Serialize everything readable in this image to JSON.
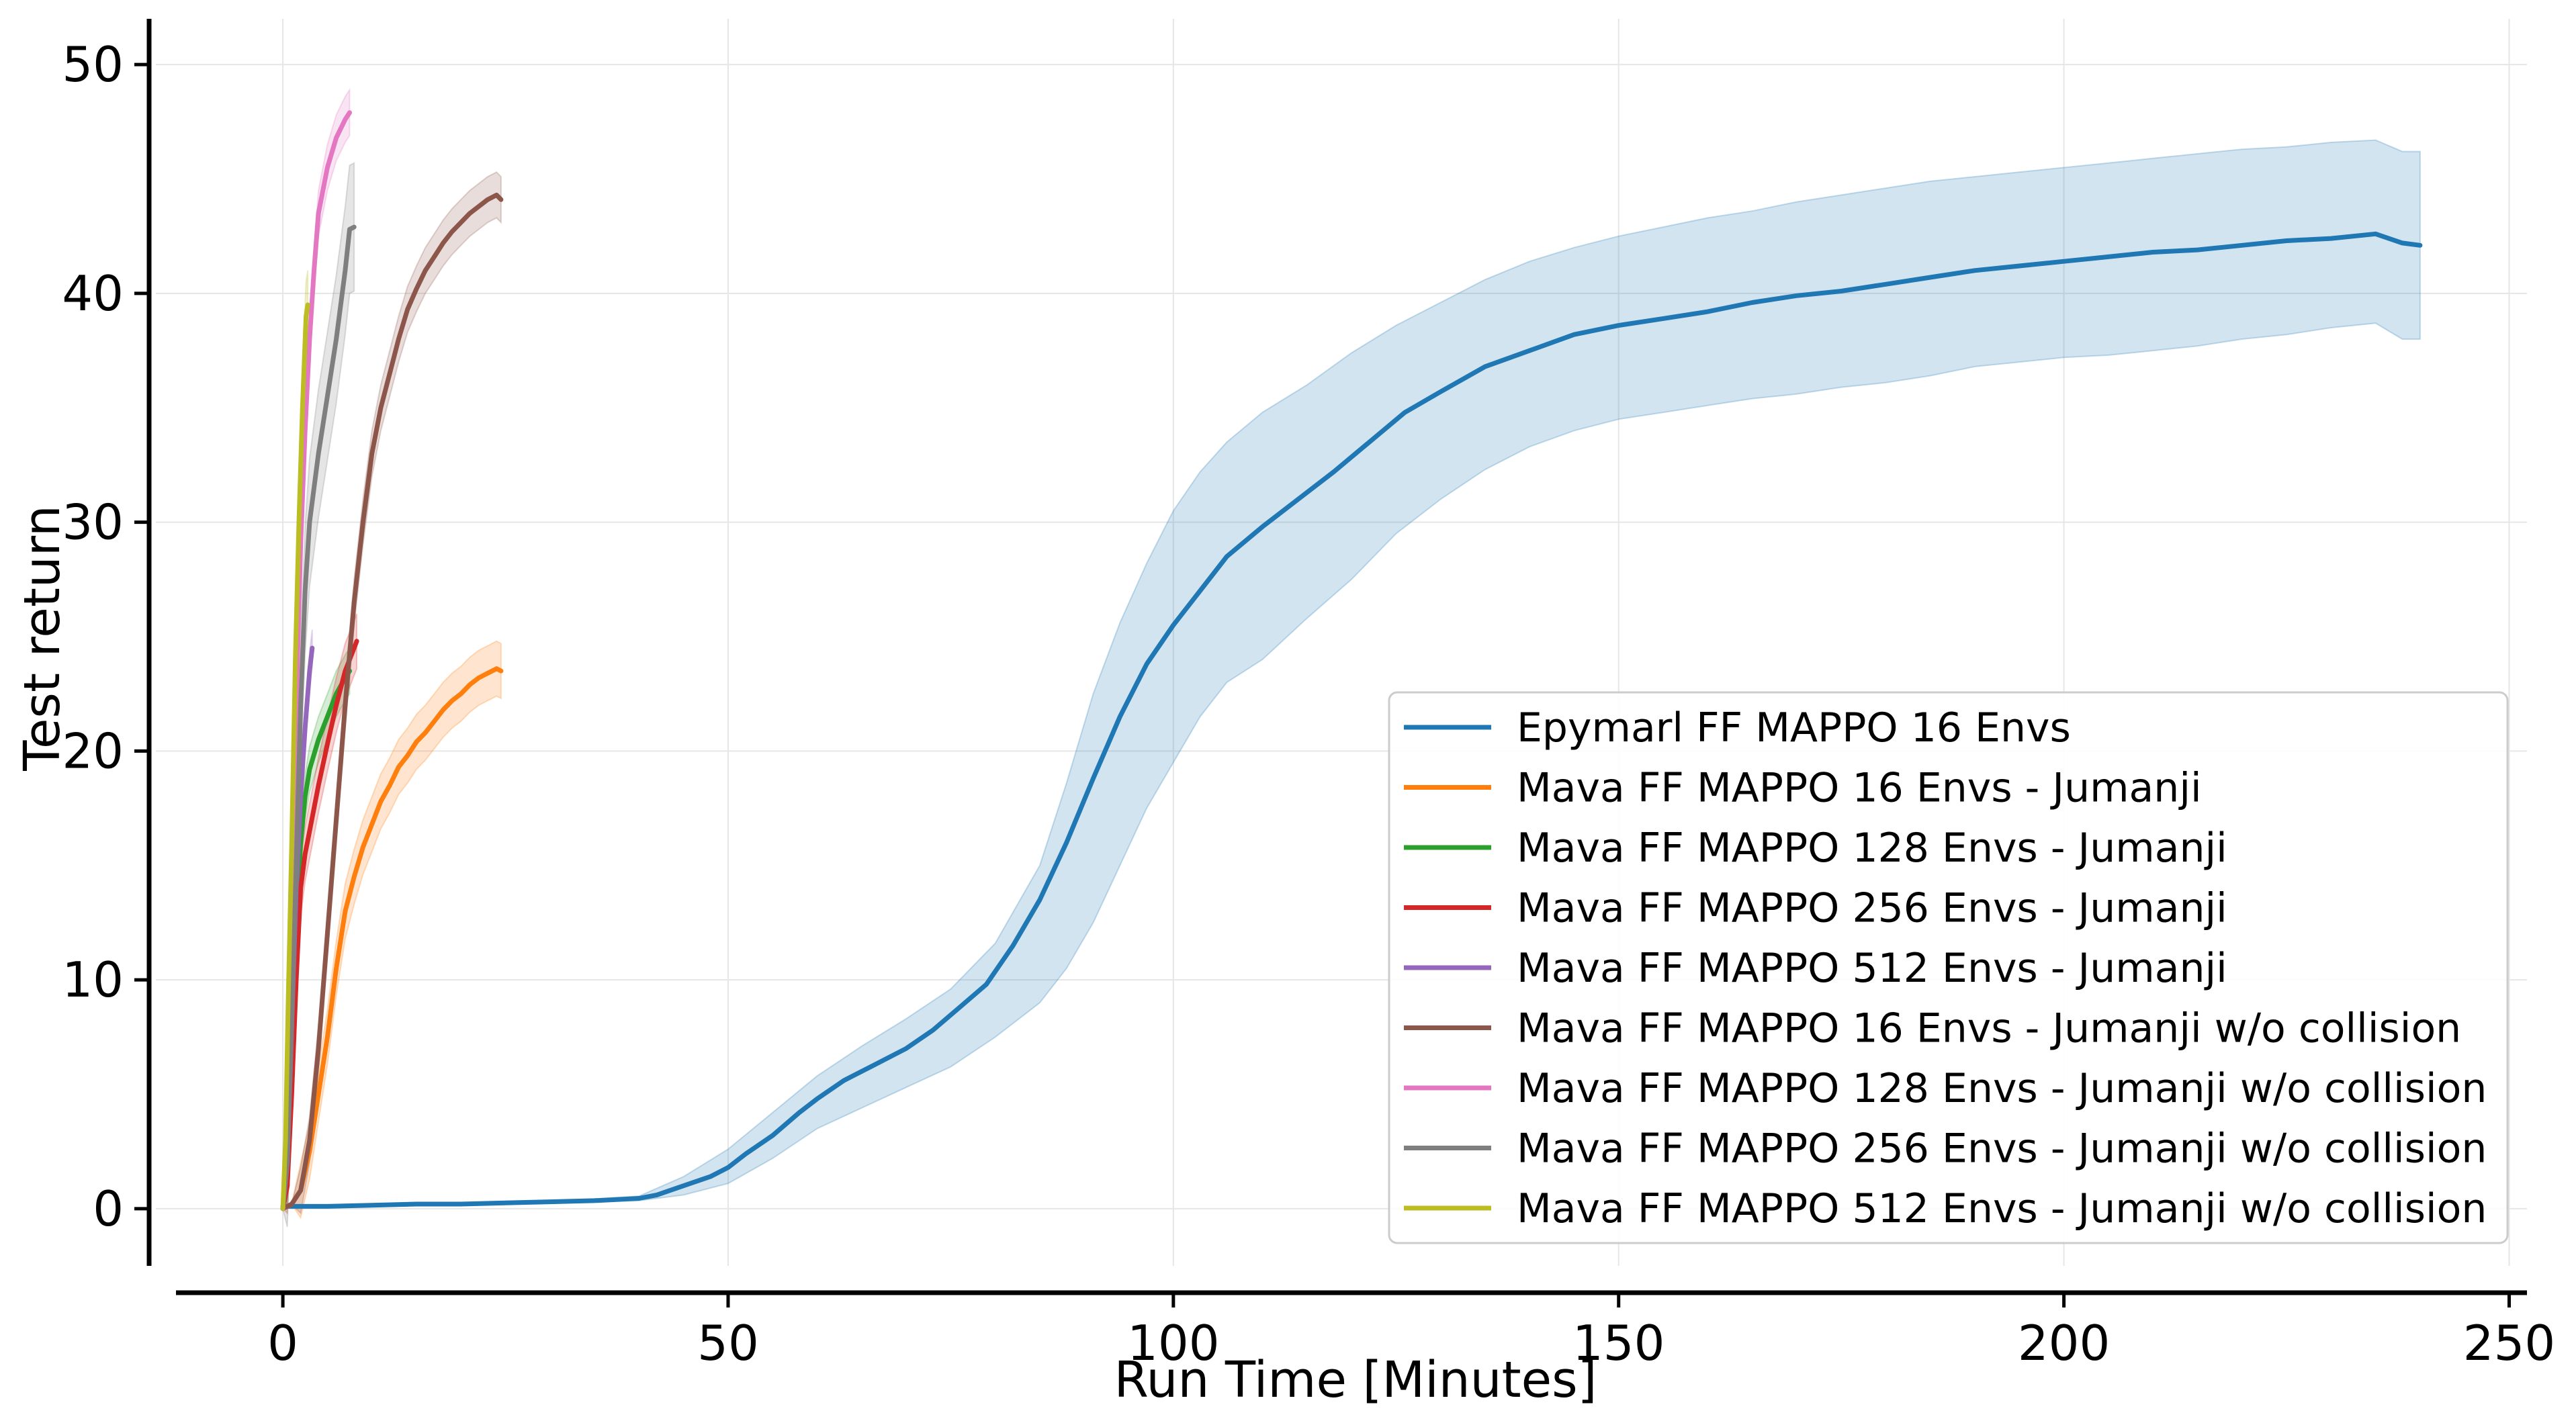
{
  "chart_data": {
    "type": "line",
    "xlabel": "Run Time [Minutes]",
    "ylabel": "Test return",
    "xlim": [
      -12,
      252
    ],
    "ylim": [
      -2.5,
      52
    ],
    "xticks": [
      0,
      50,
      100,
      150,
      200,
      250
    ],
    "yticks": [
      0,
      10,
      20,
      30,
      40,
      50
    ],
    "grid": true,
    "legend_position": "lower-right",
    "series": [
      {
        "name": "Epymarl FF MAPPO 16 Envs",
        "color": "#1f77b4",
        "points": [
          [
            0,
            0.1
          ],
          [
            5,
            0.1
          ],
          [
            10,
            0.15
          ],
          [
            15,
            0.2
          ],
          [
            20,
            0.2
          ],
          [
            25,
            0.25
          ],
          [
            30,
            0.3
          ],
          [
            35,
            0.35
          ],
          [
            40,
            0.45
          ],
          [
            42,
            0.6
          ],
          [
            45,
            1.0
          ],
          [
            48,
            1.4
          ],
          [
            50,
            1.8
          ],
          [
            52,
            2.4
          ],
          [
            55,
            3.2
          ],
          [
            58,
            4.2
          ],
          [
            60,
            4.8
          ],
          [
            63,
            5.6
          ],
          [
            66,
            6.2
          ],
          [
            70,
            7.0
          ],
          [
            73,
            7.8
          ],
          [
            76,
            8.8
          ],
          [
            79,
            9.8
          ],
          [
            82,
            11.5
          ],
          [
            85,
            13.5
          ],
          [
            88,
            16
          ],
          [
            91,
            18.8
          ],
          [
            94,
            21.5
          ],
          [
            97,
            23.8
          ],
          [
            100,
            25.5
          ],
          [
            103,
            27
          ],
          [
            106,
            28.5
          ],
          [
            110,
            29.8
          ],
          [
            114,
            31
          ],
          [
            118,
            32.2
          ],
          [
            122,
            33.5
          ],
          [
            126,
            34.8
          ],
          [
            130,
            35.7
          ],
          [
            135,
            36.8
          ],
          [
            140,
            37.5
          ],
          [
            145,
            38.2
          ],
          [
            150,
            38.6
          ],
          [
            155,
            38.9
          ],
          [
            160,
            39.2
          ],
          [
            165,
            39.6
          ],
          [
            170,
            39.9
          ],
          [
            175,
            40.1
          ],
          [
            180,
            40.4
          ],
          [
            185,
            40.7
          ],
          [
            190,
            41.0
          ],
          [
            195,
            41.2
          ],
          [
            200,
            41.4
          ],
          [
            205,
            41.6
          ],
          [
            210,
            41.8
          ],
          [
            215,
            41.9
          ],
          [
            220,
            42.1
          ],
          [
            225,
            42.3
          ],
          [
            230,
            42.4
          ],
          [
            235,
            42.6
          ],
          [
            238,
            42.2
          ],
          [
            240,
            42.1
          ]
        ],
        "band_lower": [
          [
            0,
            0.1
          ],
          [
            10,
            0.15
          ],
          [
            20,
            0.2
          ],
          [
            30,
            0.25
          ],
          [
            40,
            0.35
          ],
          [
            45,
            0.6
          ],
          [
            50,
            1.1
          ],
          [
            55,
            2.2
          ],
          [
            60,
            3.5
          ],
          [
            65,
            4.4
          ],
          [
            70,
            5.3
          ],
          [
            75,
            6.2
          ],
          [
            80,
            7.5
          ],
          [
            85,
            9.0
          ],
          [
            88,
            10.5
          ],
          [
            91,
            12.5
          ],
          [
            94,
            15.0
          ],
          [
            97,
            17.5
          ],
          [
            100,
            19.5
          ],
          [
            103,
            21.5
          ],
          [
            106,
            23.0
          ],
          [
            110,
            24.0
          ],
          [
            115,
            25.8
          ],
          [
            120,
            27.5
          ],
          [
            125,
            29.5
          ],
          [
            130,
            31.0
          ],
          [
            135,
            32.3
          ],
          [
            140,
            33.3
          ],
          [
            145,
            34.0
          ],
          [
            150,
            34.5
          ],
          [
            155,
            34.8
          ],
          [
            160,
            35.1
          ],
          [
            165,
            35.4
          ],
          [
            170,
            35.6
          ],
          [
            175,
            35.9
          ],
          [
            180,
            36.1
          ],
          [
            185,
            36.4
          ],
          [
            190,
            36.8
          ],
          [
            195,
            37.0
          ],
          [
            200,
            37.2
          ],
          [
            205,
            37.3
          ],
          [
            210,
            37.5
          ],
          [
            215,
            37.7
          ],
          [
            220,
            38.0
          ],
          [
            225,
            38.2
          ],
          [
            230,
            38.5
          ],
          [
            235,
            38.7
          ],
          [
            238,
            38.0
          ],
          [
            240,
            38.0
          ]
        ],
        "band_upper": [
          [
            0,
            0.1
          ],
          [
            10,
            0.15
          ],
          [
            20,
            0.2
          ],
          [
            30,
            0.3
          ],
          [
            40,
            0.55
          ],
          [
            45,
            1.4
          ],
          [
            50,
            2.6
          ],
          [
            55,
            4.2
          ],
          [
            60,
            5.8
          ],
          [
            65,
            7.1
          ],
          [
            70,
            8.3
          ],
          [
            75,
            9.6
          ],
          [
            80,
            11.6
          ],
          [
            85,
            15.0
          ],
          [
            88,
            18.6
          ],
          [
            91,
            22.5
          ],
          [
            94,
            25.6
          ],
          [
            97,
            28.2
          ],
          [
            100,
            30.5
          ],
          [
            103,
            32.2
          ],
          [
            106,
            33.5
          ],
          [
            110,
            34.8
          ],
          [
            115,
            36.0
          ],
          [
            120,
            37.4
          ],
          [
            125,
            38.6
          ],
          [
            130,
            39.6
          ],
          [
            135,
            40.6
          ],
          [
            140,
            41.4
          ],
          [
            145,
            42.0
          ],
          [
            150,
            42.5
          ],
          [
            155,
            42.9
          ],
          [
            160,
            43.3
          ],
          [
            165,
            43.6
          ],
          [
            170,
            44.0
          ],
          [
            175,
            44.3
          ],
          [
            180,
            44.6
          ],
          [
            185,
            44.9
          ],
          [
            190,
            45.1
          ],
          [
            195,
            45.3
          ],
          [
            200,
            45.5
          ],
          [
            205,
            45.7
          ],
          [
            210,
            45.9
          ],
          [
            215,
            46.1
          ],
          [
            220,
            46.3
          ],
          [
            225,
            46.4
          ],
          [
            230,
            46.6
          ],
          [
            235,
            46.7
          ],
          [
            238,
            46.2
          ],
          [
            240,
            46.2
          ]
        ]
      },
      {
        "name": "Mava FF MAPPO 16 Envs - Jumanji",
        "color": "#ff7f0e",
        "points": [
          [
            0,
            0
          ],
          [
            1,
            0.2
          ],
          [
            2,
            0.8
          ],
          [
            3,
            2.5
          ],
          [
            4,
            5
          ],
          [
            5,
            7.5
          ],
          [
            6,
            10.5
          ],
          [
            7,
            13
          ],
          [
            8,
            14.5
          ],
          [
            9,
            15.8
          ],
          [
            10,
            16.8
          ],
          [
            11,
            17.8
          ],
          [
            12,
            18.5
          ],
          [
            13,
            19.3
          ],
          [
            14,
            19.8
          ],
          [
            15,
            20.4
          ],
          [
            16,
            20.8
          ],
          [
            17,
            21.3
          ],
          [
            18,
            21.8
          ],
          [
            19,
            22.2
          ],
          [
            20,
            22.5
          ],
          [
            21,
            22.9
          ],
          [
            22,
            23.2
          ],
          [
            23,
            23.4
          ],
          [
            24,
            23.6
          ],
          [
            24.5,
            23.5
          ]
        ],
        "band_halfwidth": 1.2
      },
      {
        "name": "Mava FF MAPPO 128 Envs - Jumanji",
        "color": "#2ca02c",
        "points": [
          [
            0,
            0
          ],
          [
            0.5,
            1
          ],
          [
            1,
            6
          ],
          [
            1.5,
            12
          ],
          [
            2,
            16
          ],
          [
            2.5,
            18
          ],
          [
            3,
            19.2
          ],
          [
            4,
            20.5
          ],
          [
            5,
            21.5
          ],
          [
            6,
            22.5
          ],
          [
            7,
            23.2
          ],
          [
            7.5,
            23.5
          ]
        ],
        "band_halfwidth": 1.0
      },
      {
        "name": "Mava FF MAPPO 256 Envs - Jumanji",
        "color": "#d62728",
        "points": [
          [
            0,
            0
          ],
          [
            0.5,
            1
          ],
          [
            1,
            5
          ],
          [
            1.5,
            10
          ],
          [
            2,
            14
          ],
          [
            2.5,
            15.5
          ],
          [
            3,
            16.5
          ],
          [
            4,
            18.5
          ],
          [
            5,
            20.3
          ],
          [
            6,
            22
          ],
          [
            7,
            23.5
          ],
          [
            8,
            24.5
          ],
          [
            8.3,
            24.8
          ]
        ],
        "band_halfwidth": 1.2
      },
      {
        "name": "Mava FF MAPPO 512 Envs - Jumanji",
        "color": "#9467bd",
        "points": [
          [
            0,
            0
          ],
          [
            0.5,
            2
          ],
          [
            1,
            8
          ],
          [
            1.5,
            14
          ],
          [
            2,
            18
          ],
          [
            2.5,
            21
          ],
          [
            3,
            23.5
          ],
          [
            3.3,
            24.5
          ]
        ],
        "band_halfwidth": 0.8
      },
      {
        "name": "Mava FF MAPPO 16 Envs - Jumanji w/o collision",
        "color": "#8c564b",
        "points": [
          [
            0,
            0
          ],
          [
            1,
            0.2
          ],
          [
            2,
            0.8
          ],
          [
            3,
            3
          ],
          [
            4,
            7
          ],
          [
            5,
            12
          ],
          [
            6,
            17
          ],
          [
            7,
            22
          ],
          [
            8,
            26.5
          ],
          [
            9,
            30
          ],
          [
            10,
            33
          ],
          [
            11,
            35
          ],
          [
            12,
            36.5
          ],
          [
            13,
            38
          ],
          [
            14,
            39.3
          ],
          [
            15,
            40.2
          ],
          [
            16,
            41
          ],
          [
            17,
            41.6
          ],
          [
            18,
            42.2
          ],
          [
            19,
            42.7
          ],
          [
            20,
            43.1
          ],
          [
            21,
            43.5
          ],
          [
            22,
            43.8
          ],
          [
            23,
            44.1
          ],
          [
            24,
            44.3
          ],
          [
            24.5,
            44.1
          ]
        ],
        "band_halfwidth": 1.0
      },
      {
        "name": "Mava FF MAPPO 128 Envs - Jumanji w/o collision",
        "color": "#e377c2",
        "points": [
          [
            0,
            0
          ],
          [
            0.5,
            3
          ],
          [
            1,
            12
          ],
          [
            1.5,
            22
          ],
          [
            2,
            29
          ],
          [
            2.5,
            34
          ],
          [
            3,
            38
          ],
          [
            3.5,
            41
          ],
          [
            4,
            43.5
          ],
          [
            5,
            45.5
          ],
          [
            6,
            46.8
          ],
          [
            7,
            47.6
          ],
          [
            7.5,
            47.9
          ]
        ],
        "band_halfwidth": 1.0
      },
      {
        "name": "Mava FF MAPPO 256 Envs - Jumanji w/o collision",
        "color": "#7f7f7f",
        "points": [
          [
            0,
            0
          ],
          [
            0.5,
            2
          ],
          [
            1,
            8
          ],
          [
            1.5,
            15
          ],
          [
            2,
            22
          ],
          [
            2.5,
            27
          ],
          [
            3,
            30
          ],
          [
            4,
            33
          ],
          [
            5,
            35.5
          ],
          [
            6,
            38
          ],
          [
            7,
            41
          ],
          [
            7.5,
            42.8
          ],
          [
            8,
            42.9
          ]
        ],
        "band_halfwidth": 2.8
      },
      {
        "name": "Mava FF MAPPO 512 Envs - Jumanji w/o collision",
        "color": "#bcbd22",
        "points": [
          [
            0,
            0
          ],
          [
            0.3,
            3
          ],
          [
            0.6,
            9
          ],
          [
            1,
            16
          ],
          [
            1.4,
            24
          ],
          [
            1.8,
            30
          ],
          [
            2.2,
            35
          ],
          [
            2.6,
            39
          ],
          [
            2.8,
            39.5
          ]
        ],
        "band_halfwidth": 1.5
      }
    ]
  }
}
